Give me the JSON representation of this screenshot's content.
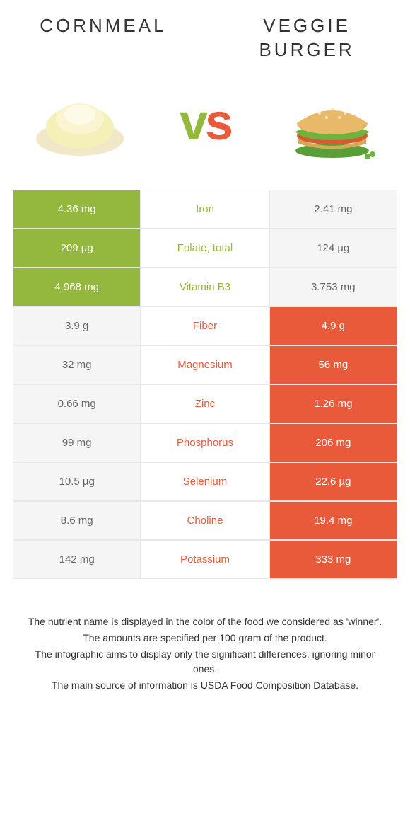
{
  "food_left": {
    "title": "CORNMEAL",
    "color": "#94b83d"
  },
  "food_right": {
    "title": "VEGGIE BURGER",
    "color": "#e85a3a"
  },
  "vs_label": "vs",
  "background_color": "#ffffff",
  "border_color": "#e8e8e8",
  "loser_bg": "#f5f5f5",
  "loser_text": "#666666",
  "title_fontsize": 26,
  "cell_fontsize": 15,
  "nutrients": [
    {
      "name": "Iron",
      "left": "4.36 mg",
      "right": "2.41 mg",
      "winner": "left"
    },
    {
      "name": "Folate, total",
      "left": "209 µg",
      "right": "124 µg",
      "winner": "left"
    },
    {
      "name": "Vitamin B3",
      "left": "4.968 mg",
      "right": "3.753 mg",
      "winner": "left"
    },
    {
      "name": "Fiber",
      "left": "3.9 g",
      "right": "4.9 g",
      "winner": "right"
    },
    {
      "name": "Magnesium",
      "left": "32 mg",
      "right": "56 mg",
      "winner": "right"
    },
    {
      "name": "Zinc",
      "left": "0.66 mg",
      "right": "1.26 mg",
      "winner": "right"
    },
    {
      "name": "Phosphorus",
      "left": "99 mg",
      "right": "206 mg",
      "winner": "right"
    },
    {
      "name": "Selenium",
      "left": "10.5 µg",
      "right": "22.6 µg",
      "winner": "right"
    },
    {
      "name": "Choline",
      "left": "8.6 mg",
      "right": "19.4 mg",
      "winner": "right"
    },
    {
      "name": "Potassium",
      "left": "142 mg",
      "right": "333 mg",
      "winner": "right"
    }
  ],
  "notes": [
    "The nutrient name is displayed in the color of the food we considered as 'winner'.",
    "The amounts are specified per 100 gram of the product.",
    "The infographic aims to display only the significant differences, ignoring minor ones.",
    "The main source of information is USDA Food Composition Database."
  ]
}
